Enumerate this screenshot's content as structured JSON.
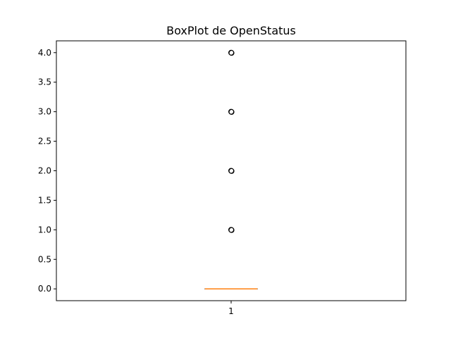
{
  "chart_data": {
    "type": "box",
    "title": "BoxPlot de OpenStatus",
    "xlabel": "",
    "ylabel": "",
    "categories": [
      "1"
    ],
    "ylim": [
      -0.2,
      4.2
    ],
    "yticks": [
      "0.0",
      "0.5",
      "1.0",
      "1.5",
      "2.0",
      "2.5",
      "3.0",
      "3.5",
      "4.0"
    ],
    "grid": false,
    "boxes": [
      {
        "category": "1",
        "q1": 0,
        "median": 0,
        "q3": 0,
        "whisker_low": 0,
        "whisker_high": 0,
        "outliers": [
          1,
          2,
          3,
          4
        ]
      }
    ],
    "colors": {
      "median": "#ff7f0e",
      "box": "#000000",
      "outlier": "#000000"
    }
  }
}
